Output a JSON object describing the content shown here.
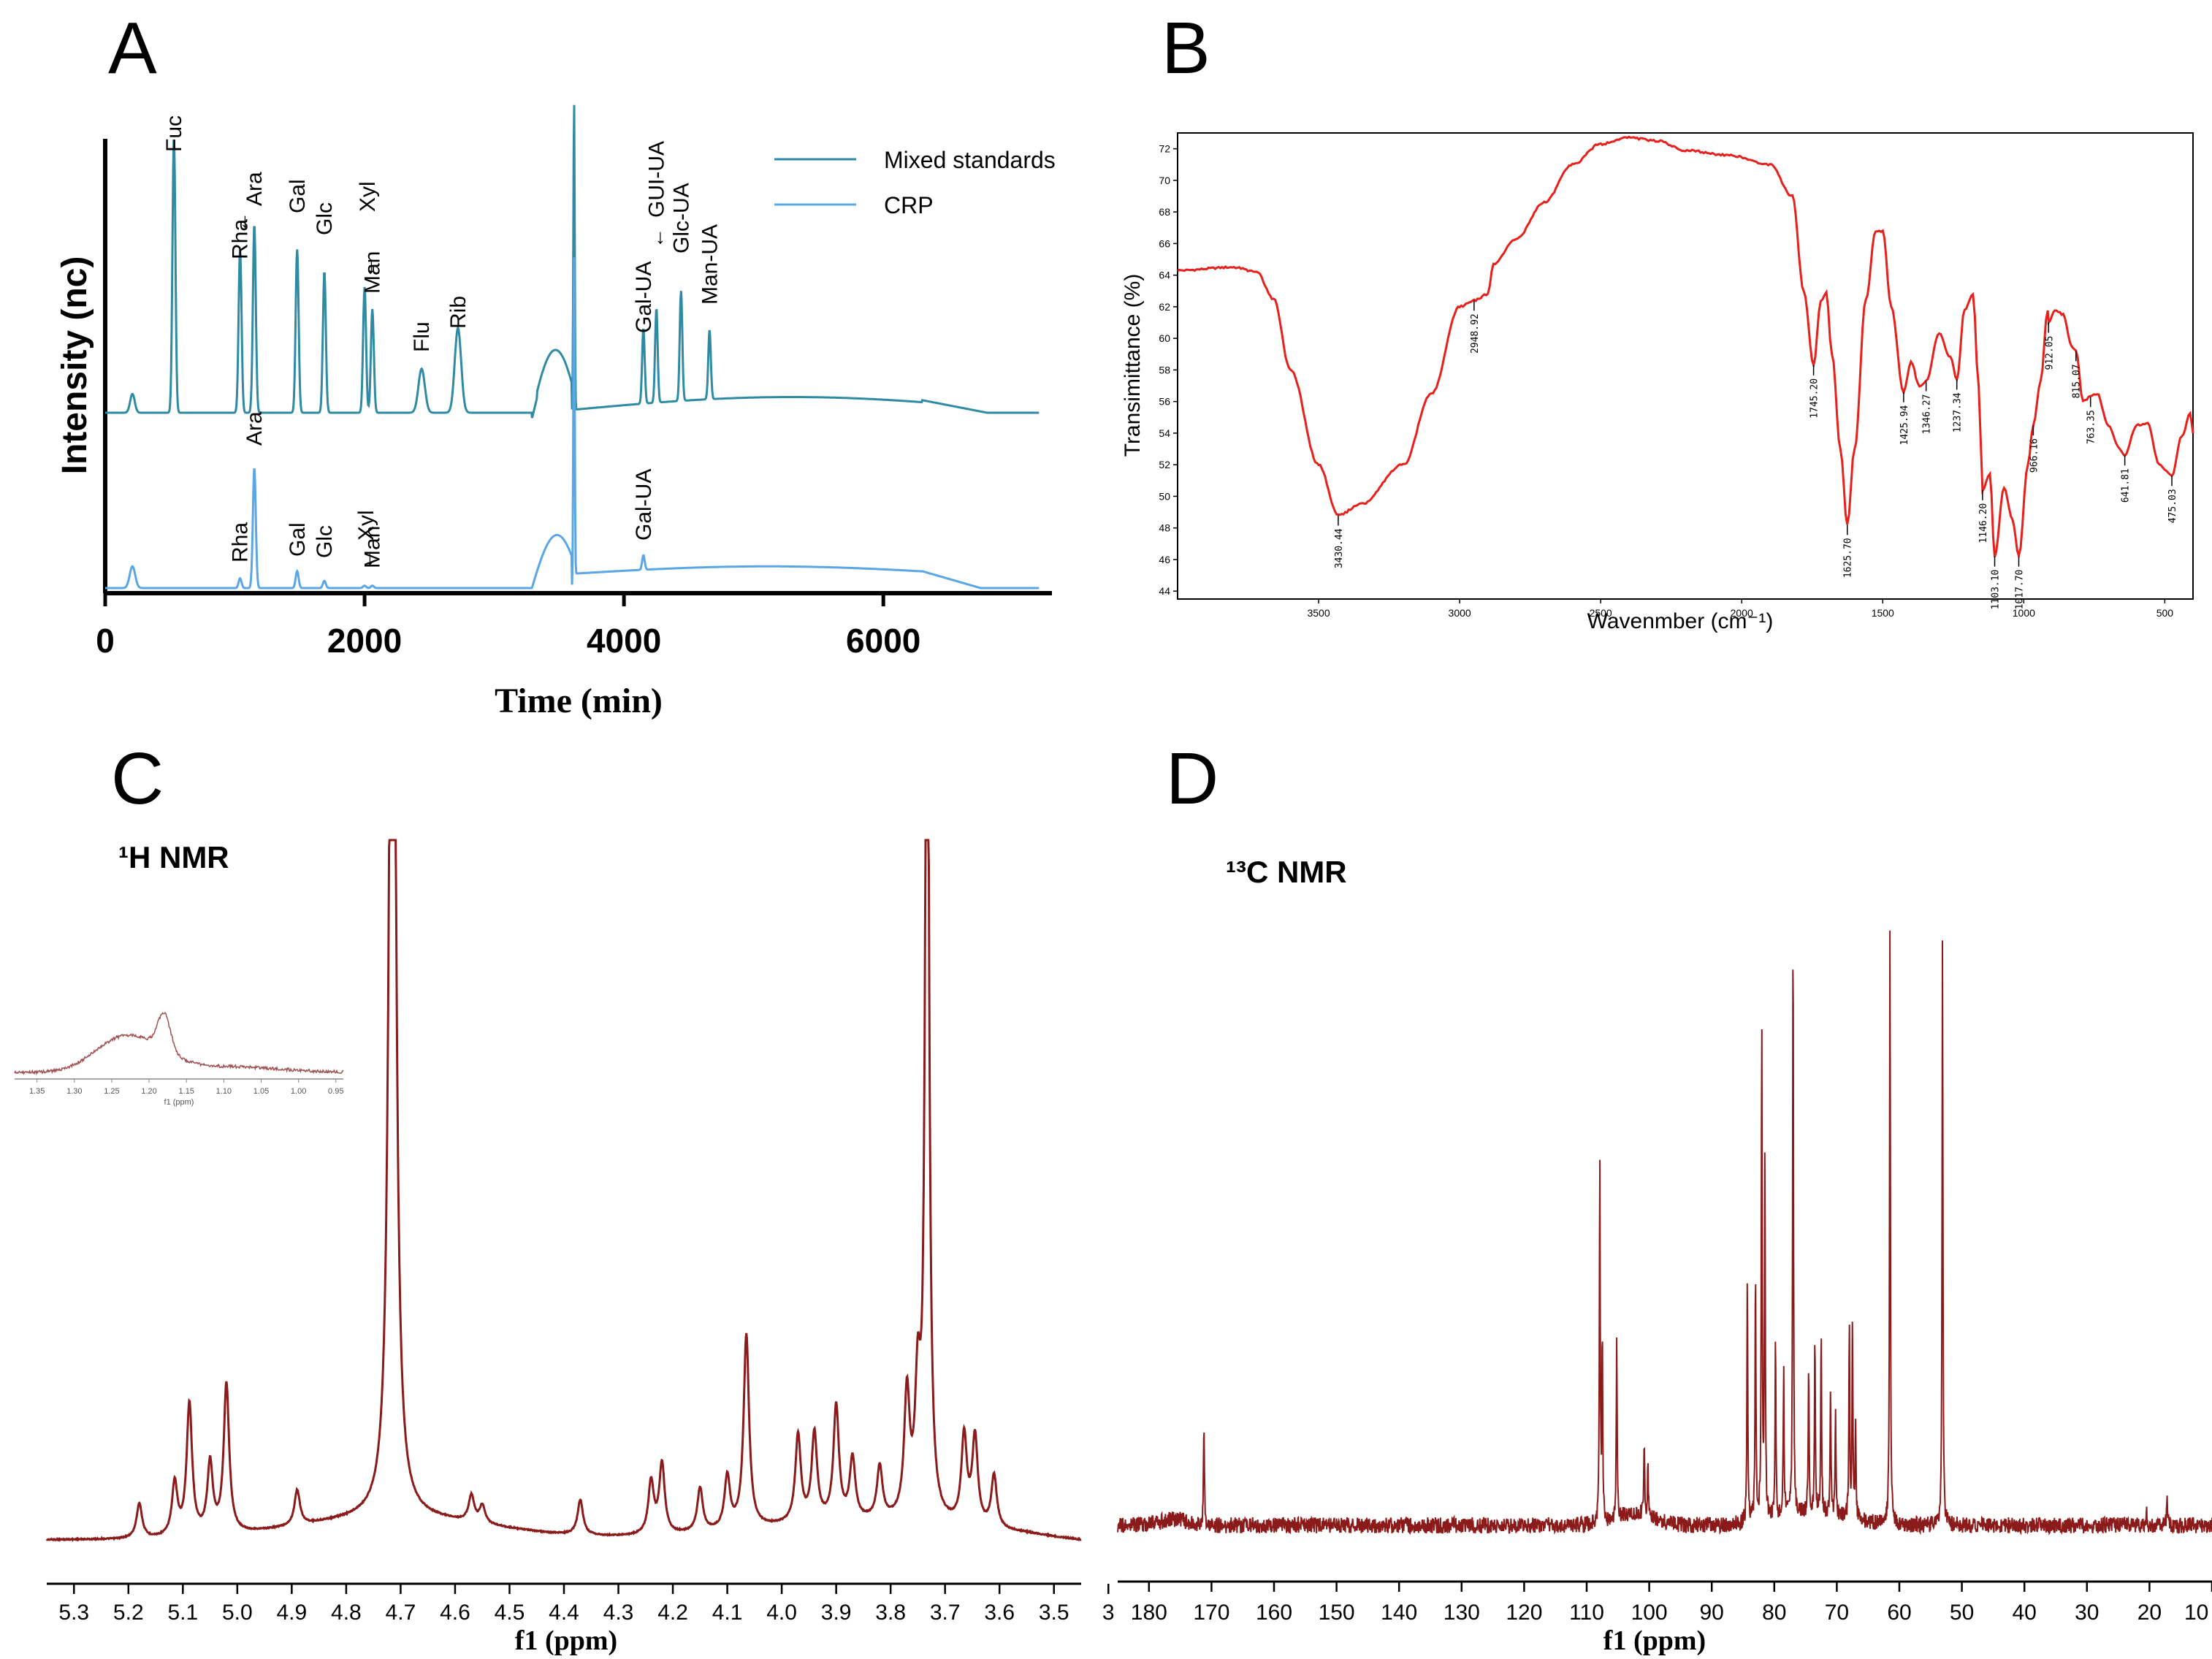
{
  "figure": {
    "panel_letters": [
      "A",
      "B",
      "C",
      "D"
    ]
  },
  "chart_data": [
    {
      "panel": "A",
      "type": "line",
      "title": "",
      "xlabel": "Time (min)",
      "ylabel": "Intensity (nc)",
      "xlim": [
        0,
        7300
      ],
      "xticks": [
        "0",
        "2000",
        "4000",
        "6000"
      ],
      "legend": {
        "position": "top-right",
        "entries": [
          "Mixed standards",
          "CRP"
        ]
      },
      "series": [
        {
          "name": "Mixed standards",
          "color": "#2e8ba3",
          "peaks": [
            {
              "label": "Fuc",
              "x": 530,
              "rel_height": 0.88
            },
            {
              "label": "Rha",
              "x": 1040,
              "rel_height": 0.52
            },
            {
              "label": "Ara",
              "x": 1150,
              "rel_height": 0.6
            },
            {
              "label": "Gal",
              "x": 1480,
              "rel_height": 0.52
            },
            {
              "label": "Glc",
              "x": 1690,
              "rel_height": 0.45
            },
            {
              "label": "Xyl",
              "x": 2000,
              "rel_height": 0.4
            },
            {
              "label": "Man",
              "x": 2060,
              "rel_height": 0.33
            },
            {
              "label": "Flu",
              "x": 2440,
              "rel_height": 0.14
            },
            {
              "label": "Rib",
              "x": 2720,
              "rel_height": 0.27
            },
            {
              "label": "Gal-UA",
              "x": 4150,
              "rel_height": 0.24
            },
            {
              "label": "GUI-UA",
              "x": 4250,
              "rel_height": 0.3
            },
            {
              "label": "Glc-UA",
              "x": 4440,
              "rel_height": 0.35
            },
            {
              "label": "Man-UA",
              "x": 4660,
              "rel_height": 0.22
            }
          ]
        },
        {
          "name": "CRP",
          "color": "#5aa6e6",
          "peaks": [
            {
              "label": "Rha",
              "x": 1040,
              "rel_height": 0.04
            },
            {
              "label": "Ara",
              "x": 1150,
              "rel_height": 0.5
            },
            {
              "label": "Gal",
              "x": 1480,
              "rel_height": 0.07
            },
            {
              "label": "Glc",
              "x": 1690,
              "rel_height": 0.03
            },
            {
              "label": "Xyl",
              "x": 2000,
              "rel_height": 0.01
            },
            {
              "label": "Man",
              "x": 2060,
              "rel_height": 0.01
            },
            {
              "label": "Gal-UA",
              "x": 4150,
              "rel_height": 0.06
            }
          ]
        }
      ]
    },
    {
      "panel": "B",
      "type": "line",
      "title": "",
      "xlabel": "Wavenmber (cm⁻¹)",
      "ylabel": "Transimittance (%)",
      "xlim": [
        4000,
        400
      ],
      "ylim": [
        43.5,
        73
      ],
      "xticks": [
        "3500",
        "3000",
        "2500",
        "2000",
        "1500",
        "1000",
        "500"
      ],
      "yticks": [
        "44",
        "46",
        "48",
        "50",
        "52",
        "54",
        "56",
        "58",
        "60",
        "62",
        "64",
        "66",
        "68",
        "70",
        "72"
      ],
      "color": "#e8201c",
      "points": [
        [
          4000,
          64.3
        ],
        [
          3800,
          64.5
        ],
        [
          3720,
          64.2
        ],
        [
          3660,
          62.5
        ],
        [
          3600,
          58
        ],
        [
          3500,
          52
        ],
        [
          3430.44,
          48.8
        ],
        [
          3350,
          49.5
        ],
        [
          3200,
          52
        ],
        [
          3100,
          56.5
        ],
        [
          3000,
          62
        ],
        [
          2948.92,
          62.4
        ],
        [
          2900,
          62.8
        ],
        [
          2880,
          64.7
        ],
        [
          2800,
          66.3
        ],
        [
          2700,
          68.6
        ],
        [
          2600,
          71
        ],
        [
          2500,
          72.3
        ],
        [
          2400,
          72.7
        ],
        [
          2300,
          72.5
        ],
        [
          2200,
          71.9
        ],
        [
          2050,
          71.6
        ],
        [
          1900,
          71
        ],
        [
          1820,
          69
        ],
        [
          1780,
          63
        ],
        [
          1745.2,
          58.3
        ],
        [
          1720,
          62.3
        ],
        [
          1700,
          62.9
        ],
        [
          1680,
          59
        ],
        [
          1650,
          53
        ],
        [
          1625.7,
          48.2
        ],
        [
          1600,
          53
        ],
        [
          1560,
          62.4
        ],
        [
          1525,
          66.8
        ],
        [
          1500,
          66.8
        ],
        [
          1470,
          62
        ],
        [
          1425.94,
          56.6
        ],
        [
          1400,
          58.5
        ],
        [
          1370,
          57
        ],
        [
          1346.27,
          57.3
        ],
        [
          1300,
          60.3
        ],
        [
          1260,
          58.8
        ],
        [
          1237.34,
          57.4
        ],
        [
          1210,
          61.8
        ],
        [
          1180,
          62.8
        ],
        [
          1160,
          57
        ],
        [
          1146.2,
          50.4
        ],
        [
          1120,
          51.4
        ],
        [
          1103.1,
          46.2
        ],
        [
          1070,
          50.5
        ],
        [
          1040,
          48.5
        ],
        [
          1017.7,
          46.2
        ],
        [
          985,
          52
        ],
        [
          966.16,
          54.5
        ],
        [
          940,
          57.3
        ],
        [
          915,
          61.8
        ],
        [
          912.05,
          61
        ],
        [
          890,
          61.8
        ],
        [
          860,
          61.5
        ],
        [
          830,
          59.5
        ],
        [
          815.07,
          59.2
        ],
        [
          790,
          56
        ],
        [
          763.35,
          56.3
        ],
        [
          740,
          56.5
        ],
        [
          700,
          54.5
        ],
        [
          660,
          53
        ],
        [
          641.81,
          52.6
        ],
        [
          600,
          54.5
        ],
        [
          560,
          54.6
        ],
        [
          520,
          52
        ],
        [
          475.03,
          51.3
        ],
        [
          440,
          53.8
        ],
        [
          410,
          55.2
        ],
        [
          400,
          54
        ]
      ],
      "annotations": [
        {
          "label": "3430.44",
          "x": 3430.44,
          "y": 48.8
        },
        {
          "label": "2948.92",
          "x": 2948.92,
          "y": 62.4
        },
        {
          "label": "1745.20",
          "x": 1745.2,
          "y": 58.3
        },
        {
          "label": "1625.70",
          "x": 1625.7,
          "y": 48.2
        },
        {
          "label": "1425.94",
          "x": 1425.94,
          "y": 56.6
        },
        {
          "label": "1346.27",
          "x": 1346.27,
          "y": 57.3
        },
        {
          "label": "1237.34",
          "x": 1237.34,
          "y": 57.4
        },
        {
          "label": "1146.20",
          "x": 1146.2,
          "y": 50.4
        },
        {
          "label": "1103.10",
          "x": 1103.1,
          "y": 46.2
        },
        {
          "label": "1017.70",
          "x": 1017.7,
          "y": 46.2
        },
        {
          "label": "966.16",
          "x": 966.16,
          "y": 54.5
        },
        {
          "label": "912.05",
          "x": 912.05,
          "y": 61
        },
        {
          "label": "815.07",
          "x": 815.07,
          "y": 59.2
        },
        {
          "label": "763.35",
          "x": 763.35,
          "y": 56.3
        },
        {
          "label": "641.81",
          "x": 641.81,
          "y": 52.6
        },
        {
          "label": "475.03",
          "x": 475.03,
          "y": 51.3
        }
      ]
    },
    {
      "panel": "C",
      "type": "line",
      "title": "¹H NMR",
      "xlabel": "f1 (ppm)",
      "ylabel": "",
      "xlim": [
        5.35,
        3.45
      ],
      "xticks": [
        "5.3",
        "5.2",
        "5.1",
        "5.0",
        "4.9",
        "4.8",
        "4.7",
        "4.6",
        "4.5",
        "4.4",
        "4.3",
        "4.2",
        "4.1",
        "4.0",
        "3.9",
        "3.8",
        "3.7",
        "3.6",
        "3.5",
        "3"
      ],
      "color": "#8b1a1a",
      "peaks": [
        {
          "ppm": 5.18,
          "height": 0.04
        },
        {
          "ppm": 5.115,
          "height": 0.06
        },
        {
          "ppm": 5.088,
          "height": 0.15
        },
        {
          "ppm": 5.05,
          "height": 0.08
        },
        {
          "ppm": 5.02,
          "height": 0.17
        },
        {
          "ppm": 4.89,
          "height": 0.04
        },
        {
          "ppm": 4.715,
          "height": 1.6
        },
        {
          "ppm": 4.57,
          "height": 0.03
        },
        {
          "ppm": 4.55,
          "height": 0.02
        },
        {
          "ppm": 4.37,
          "height": 0.04
        },
        {
          "ppm": 4.24,
          "height": 0.06
        },
        {
          "ppm": 4.22,
          "height": 0.08
        },
        {
          "ppm": 4.15,
          "height": 0.05
        },
        {
          "ppm": 4.1,
          "height": 0.06
        },
        {
          "ppm": 4.065,
          "height": 0.22
        },
        {
          "ppm": 3.97,
          "height": 0.1
        },
        {
          "ppm": 3.94,
          "height": 0.1
        },
        {
          "ppm": 3.9,
          "height": 0.13
        },
        {
          "ppm": 3.87,
          "height": 0.07
        },
        {
          "ppm": 3.82,
          "height": 0.06
        },
        {
          "ppm": 3.77,
          "height": 0.14
        },
        {
          "ppm": 3.75,
          "height": 0.14
        },
        {
          "ppm": 3.733,
          "height": 1.2
        },
        {
          "ppm": 3.665,
          "height": 0.1
        },
        {
          "ppm": 3.645,
          "height": 0.1
        },
        {
          "ppm": 3.61,
          "height": 0.06
        }
      ],
      "inset": {
        "xlabel": "f1 (ppm)",
        "xticks": [
          "1.35",
          "1.30",
          "1.25",
          "1.20",
          "1.15",
          "1.10",
          "1.05",
          "1.00",
          "0.95"
        ],
        "xlim": [
          1.38,
          0.94
        ],
        "peaks": [
          {
            "ppm": 1.245,
            "height": 0.35
          },
          {
            "ppm": 1.18,
            "height": 0.85
          }
        ]
      }
    },
    {
      "panel": "D",
      "type": "line",
      "title": "¹³C NMR",
      "xlabel": "f1 (ppm)",
      "ylabel": "",
      "xlim": [
        185,
        10
      ],
      "xticks": [
        "180",
        "170",
        "160",
        "150",
        "140",
        "130",
        "120",
        "110",
        "100",
        "90",
        "80",
        "70",
        "60",
        "50",
        "40",
        "30",
        "20",
        "10"
      ],
      "color": "#8b1a1a",
      "peaks": [
        {
          "ppm": 171.2,
          "height": 0.18
        },
        {
          "ppm": 107.9,
          "height": 0.6
        },
        {
          "ppm": 107.5,
          "height": 0.32
        },
        {
          "ppm": 105.2,
          "height": 0.3
        },
        {
          "ppm": 100.8,
          "height": 0.12
        },
        {
          "ppm": 100.2,
          "height": 0.08
        },
        {
          "ppm": 84.3,
          "height": 0.41
        },
        {
          "ppm": 83.0,
          "height": 0.42
        },
        {
          "ppm": 82.0,
          "height": 0.82
        },
        {
          "ppm": 81.5,
          "height": 0.6
        },
        {
          "ppm": 79.8,
          "height": 0.3
        },
        {
          "ppm": 78.5,
          "height": 0.24
        },
        {
          "ppm": 77.0,
          "height": 0.98
        },
        {
          "ppm": 74.5,
          "height": 0.25
        },
        {
          "ppm": 73.5,
          "height": 0.3
        },
        {
          "ppm": 72.5,
          "height": 0.3
        },
        {
          "ppm": 71.0,
          "height": 0.2
        },
        {
          "ppm": 70.2,
          "height": 0.18
        },
        {
          "ppm": 68.0,
          "height": 0.32
        },
        {
          "ppm": 67.5,
          "height": 0.32
        },
        {
          "ppm": 67.0,
          "height": 0.15
        },
        {
          "ppm": 61.5,
          "height": 0.98
        },
        {
          "ppm": 53.1,
          "height": 0.97
        },
        {
          "ppm": 20.5,
          "height": 0.03
        },
        {
          "ppm": 17.2,
          "height": 0.05
        }
      ]
    }
  ]
}
